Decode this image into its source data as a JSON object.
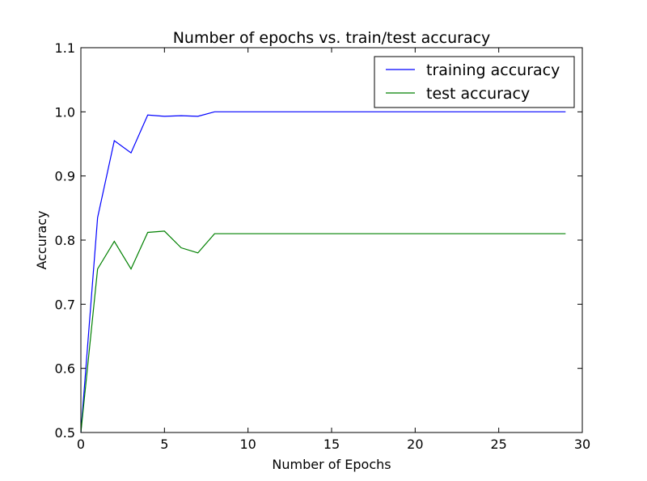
{
  "chart_data": {
    "type": "line",
    "title": "Number of epochs vs. train/test accuracy",
    "xlabel": "Number of Epochs",
    "ylabel": "Accuracy",
    "xlim": [
      0,
      30
    ],
    "ylim": [
      0.5,
      1.1
    ],
    "x_ticks": [
      0,
      5,
      10,
      15,
      20,
      25,
      30
    ],
    "y_ticks": [
      0.5,
      0.6,
      0.7,
      0.8,
      0.9,
      1.0,
      1.1
    ],
    "x_tick_labels": [
      "0",
      "5",
      "10",
      "15",
      "20",
      "25",
      "30"
    ],
    "y_tick_labels": [
      "0.5",
      "0.6",
      "0.7",
      "0.8",
      "0.9",
      "1.0",
      "1.1"
    ],
    "grid": false,
    "legend_position": "top-right",
    "x": [
      0,
      1,
      2,
      3,
      4,
      5,
      6,
      7,
      8,
      9,
      10,
      11,
      12,
      13,
      14,
      15,
      16,
      17,
      18,
      19,
      20,
      21,
      22,
      23,
      24,
      25,
      26,
      27,
      28,
      29
    ],
    "series": [
      {
        "name": "training accuracy",
        "color": "#0000ff",
        "values": [
          0.5,
          0.835,
          0.955,
          0.936,
          0.995,
          0.993,
          0.994,
          0.993,
          1.0,
          1.0,
          1.0,
          1.0,
          1.0,
          1.0,
          1.0,
          1.0,
          1.0,
          1.0,
          1.0,
          1.0,
          1.0,
          1.0,
          1.0,
          1.0,
          1.0,
          1.0,
          1.0,
          1.0,
          1.0,
          1.0
        ]
      },
      {
        "name": "test accuracy",
        "color": "#008000",
        "values": [
          0.5,
          0.755,
          0.798,
          0.755,
          0.812,
          0.814,
          0.788,
          0.78,
          0.81,
          0.81,
          0.81,
          0.81,
          0.81,
          0.81,
          0.81,
          0.81,
          0.81,
          0.81,
          0.81,
          0.81,
          0.81,
          0.81,
          0.81,
          0.81,
          0.81,
          0.81,
          0.81,
          0.81,
          0.81,
          0.81
        ]
      }
    ]
  }
}
